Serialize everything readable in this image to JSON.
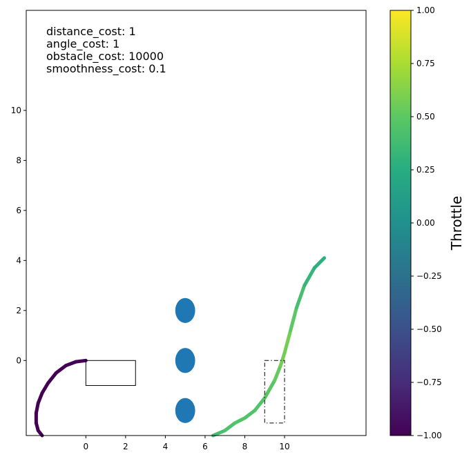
{
  "chart_data": {
    "type": "line",
    "title": "",
    "xlabel": "",
    "ylabel": "",
    "xlim": [
      -3.0,
      14.1
    ],
    "ylim": [
      -3.0,
      14.0
    ],
    "xticks": [
      0,
      2,
      4,
      6,
      8,
      10
    ],
    "yticks": [
      0,
      2,
      4,
      6,
      8,
      10
    ],
    "annotations": [
      "distance_cost: 1",
      "angle_cost: 1",
      "obstacle_cost: 10000",
      "smoothness_cost: 0.1"
    ],
    "obstacles": [
      {
        "x": 5,
        "y": 2,
        "rx": 0.5,
        "ry": 0.5
      },
      {
        "x": 5,
        "y": 0,
        "rx": 0.5,
        "ry": 0.5
      },
      {
        "x": 5,
        "y": -2,
        "rx": 0.5,
        "ry": 0.5
      }
    ],
    "obstacle_color": "#1f77b4",
    "start_box": {
      "x0": 0.0,
      "y0": -1.0,
      "x1": 2.5,
      "y1": 0.0
    },
    "goal_box": {
      "x0": 9.0,
      "y0": -2.5,
      "x1": 10.0,
      "y1": 0.0
    },
    "series": [
      {
        "x": [
          0.0,
          -0.5,
          -1.0,
          -1.5,
          -1.9,
          -2.2,
          -2.4,
          -2.5,
          -2.5,
          -2.4,
          -2.2
        ],
        "y": [
          0.0,
          -0.05,
          -0.2,
          -0.5,
          -0.9,
          -1.3,
          -1.7,
          -2.1,
          -2.5,
          -2.8,
          -3.0
        ],
        "throttle": [
          -1.0,
          -1.0,
          -1.0,
          -1.0,
          -1.0,
          -1.0,
          -1.0,
          -1.0,
          -1.0,
          -1.0,
          -1.0
        ]
      },
      {
        "x": [
          6.4,
          7.0,
          7.5,
          8.0,
          8.5,
          9.0,
          9.5,
          9.8,
          10.0,
          10.3,
          10.6,
          11.0,
          11.5,
          12.0
        ],
        "y": [
          -3.0,
          -2.8,
          -2.5,
          -2.3,
          -2.0,
          -1.5,
          -0.8,
          -0.2,
          0.3,
          1.2,
          2.1,
          3.0,
          3.7,
          4.1
        ],
        "throttle": [
          0.4,
          0.42,
          0.45,
          0.45,
          0.45,
          0.45,
          0.5,
          0.55,
          0.6,
          0.55,
          0.45,
          0.35,
          0.3,
          0.25
        ]
      }
    ],
    "colorbar": {
      "label": "Throttle",
      "range": [
        -1.0,
        1.0
      ],
      "ticks": [
        "1.00",
        "0.75",
        "0.50",
        "0.25",
        "0.00",
        "−0.25",
        "−0.50",
        "−0.75",
        "−1.00"
      ],
      "colormap": "viridis"
    }
  }
}
